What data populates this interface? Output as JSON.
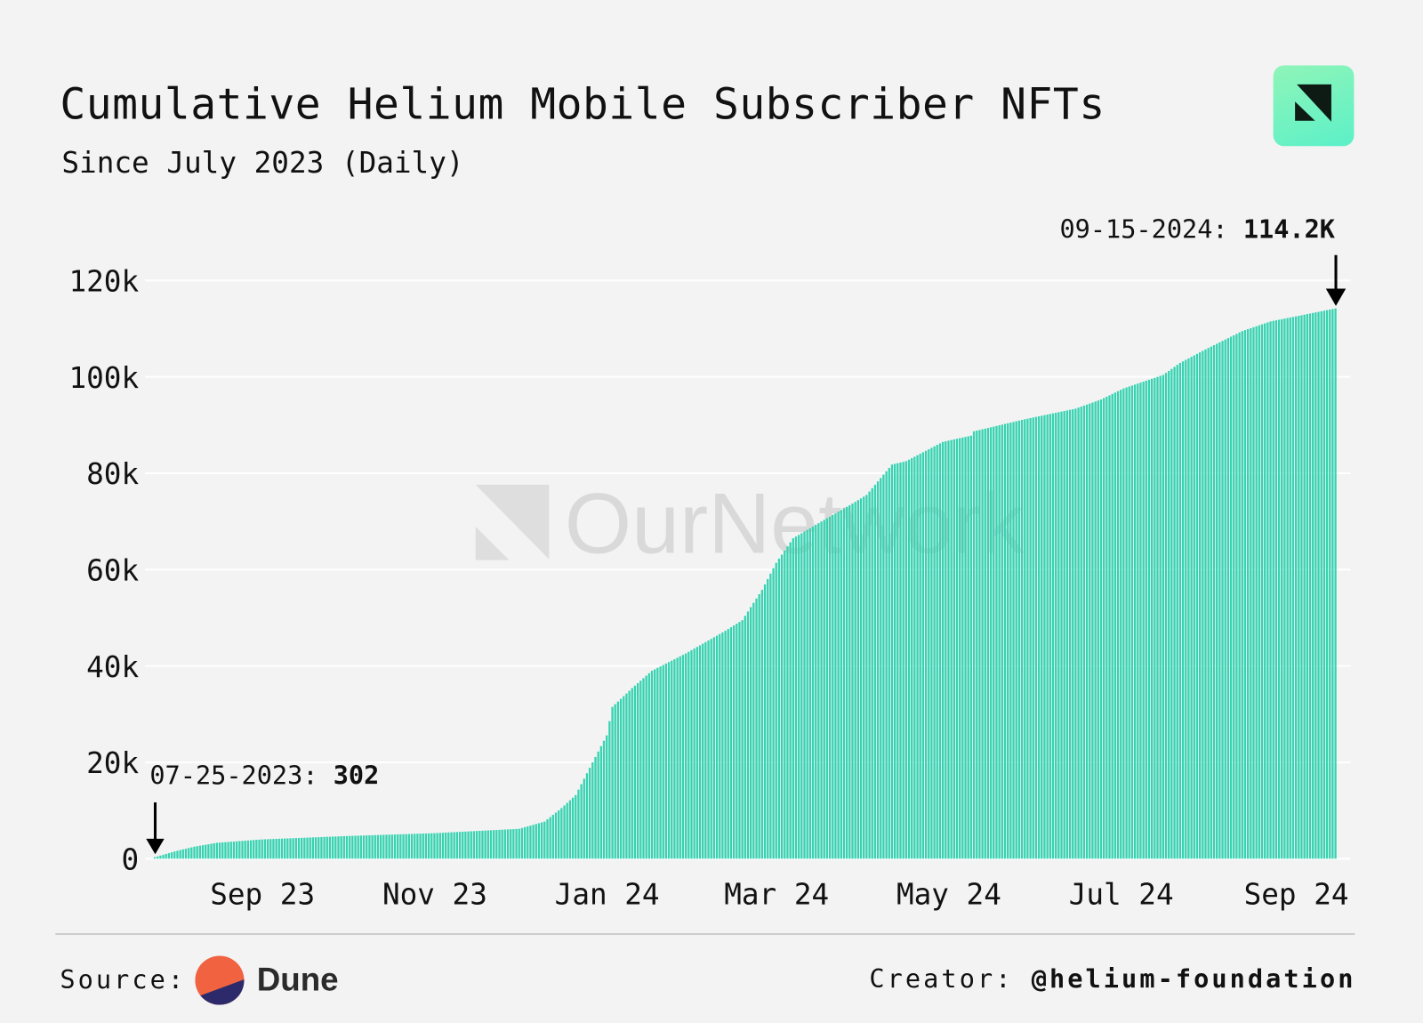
{
  "header": {
    "title": "Cumulative Helium Mobile Subscriber NFTs",
    "subtitle": "Since July 2023 (Daily)",
    "logo": "OurNetwork",
    "watermark": "OurNetwork"
  },
  "footer": {
    "source_label": "Source:",
    "source_name": "Dune",
    "creator_label": "Creator:",
    "creator_handle": "@helium-foundation"
  },
  "colors": {
    "bar": "#35d3b1",
    "background": "#f3f3f3",
    "grid": "#ffffff",
    "dune_orange": "#f06240",
    "dune_navy": "#2c2a6b"
  },
  "chart_data": {
    "type": "bar",
    "title": "Cumulative Helium Mobile Subscriber NFTs",
    "subtitle": "Since July 2023 (Daily)",
    "xlabel": "",
    "ylabel": "",
    "x_range": [
      "2023-07-25",
      "2024-09-15"
    ],
    "ylim": [
      0,
      120000
    ],
    "grid": true,
    "y_ticks": [
      {
        "v": 0,
        "label": "0"
      },
      {
        "v": 20000,
        "label": "20k"
      },
      {
        "v": 40000,
        "label": "40k"
      },
      {
        "v": 60000,
        "label": "60k"
      },
      {
        "v": 80000,
        "label": "80k"
      },
      {
        "v": 100000,
        "label": "100k"
      },
      {
        "v": 120000,
        "label": "120k"
      }
    ],
    "x_ticks": [
      {
        "date": "2023-09-01",
        "label": "Sep 23"
      },
      {
        "date": "2023-11-01",
        "label": "Nov 23"
      },
      {
        "date": "2024-01-01",
        "label": "Jan 24"
      },
      {
        "date": "2024-03-01",
        "label": "Mar 24"
      },
      {
        "date": "2024-05-01",
        "label": "May 24"
      },
      {
        "date": "2024-07-01",
        "label": "Jul 24"
      },
      {
        "date": "2024-09-01",
        "label": "Sep 24"
      }
    ],
    "series_note": "daily cumulative values, linearly interpolated between these read points",
    "points": [
      [
        "2023-07-25",
        302
      ],
      [
        "2023-08-01",
        1500
      ],
      [
        "2023-08-08",
        2500
      ],
      [
        "2023-08-16",
        3300
      ],
      [
        "2023-09-01",
        4000
      ],
      [
        "2023-10-01",
        4700
      ],
      [
        "2023-11-01",
        5300
      ],
      [
        "2023-12-01",
        6200
      ],
      [
        "2023-12-10",
        7700
      ],
      [
        "2023-12-16",
        10500
      ],
      [
        "2023-12-21",
        13200
      ],
      [
        "2023-12-27",
        20000
      ],
      [
        "2024-01-01",
        25600
      ],
      [
        "2024-01-03",
        31500
      ],
      [
        "2024-01-10",
        35400
      ],
      [
        "2024-01-17",
        39000
      ],
      [
        "2024-01-29",
        42600
      ],
      [
        "2024-02-12",
        47300
      ],
      [
        "2024-02-18",
        49500
      ],
      [
        "2024-02-25",
        55800
      ],
      [
        "2024-03-01",
        61400
      ],
      [
        "2024-03-07",
        66500
      ],
      [
        "2024-03-15",
        69300
      ],
      [
        "2024-03-28",
        73700
      ],
      [
        "2024-04-02",
        75500
      ],
      [
        "2024-04-11",
        81800
      ],
      [
        "2024-04-16",
        82500
      ],
      [
        "2024-04-29",
        86500
      ],
      [
        "2024-05-09",
        87800
      ],
      [
        "2024-05-10",
        88700
      ],
      [
        "2024-05-28",
        91200
      ],
      [
        "2024-06-15",
        93400
      ],
      [
        "2024-06-24",
        95300
      ],
      [
        "2024-07-02",
        97600
      ],
      [
        "2024-07-16",
        100400
      ],
      [
        "2024-07-22",
        102900
      ],
      [
        "2024-07-31",
        105700
      ],
      [
        "2024-08-13",
        109500
      ],
      [
        "2024-08-23",
        111500
      ],
      [
        "2024-09-15",
        114200
      ]
    ],
    "annotations": [
      {
        "date_label": "07-25-2023: ",
        "value_label": "302"
      },
      {
        "date_label": "09-15-2024: ",
        "value_label": "114.2K"
      }
    ]
  }
}
